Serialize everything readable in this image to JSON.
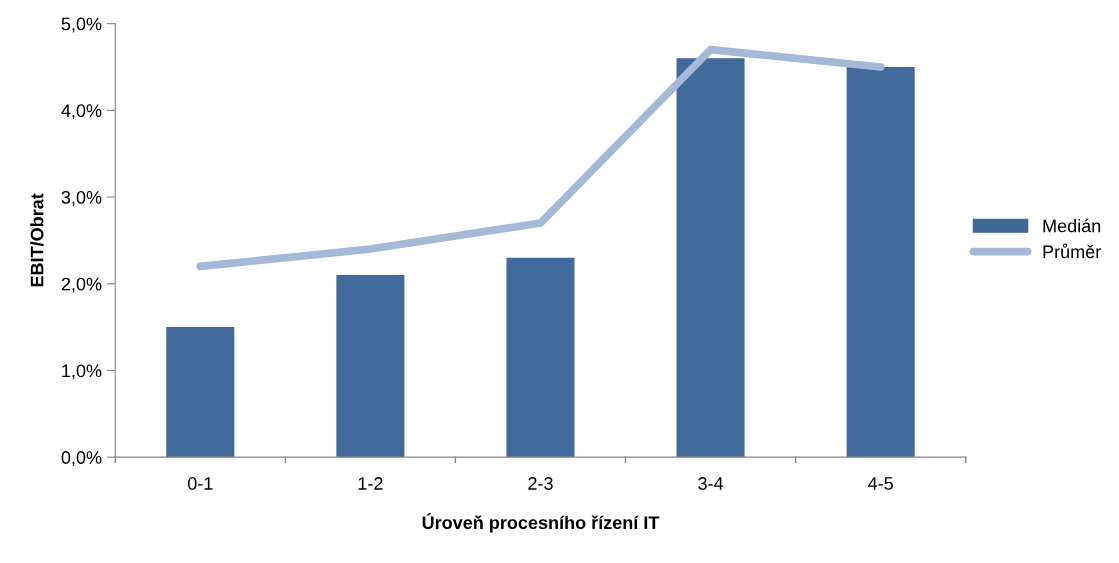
{
  "chart_data": {
    "type": "bar",
    "xlabel": "Úroveň procesního řízení IT",
    "ylabel": "EBIT/Obrat",
    "categories": [
      "0-1",
      "1-2",
      "2-3",
      "3-4",
      "4-5"
    ],
    "series": [
      {
        "name": "Medián",
        "color": "#41699a",
        "values": [
          1.5,
          2.1,
          2.3,
          4.6,
          4.5
        ]
      },
      {
        "name": "Průměr",
        "type": "line",
        "color": "#a4b8d8",
        "values": [
          2.2,
          2.4,
          2.7,
          4.7,
          4.5
        ]
      }
    ],
    "ylim": [
      0,
      5
    ],
    "yticks": [
      {
        "value": 0,
        "label": "0,0%"
      },
      {
        "value": 1,
        "label": "1,0%"
      },
      {
        "value": 2,
        "label": "2,0%"
      },
      {
        "value": 3,
        "label": "3,0%"
      },
      {
        "value": 4,
        "label": "4,0%"
      },
      {
        "value": 5,
        "label": "5,0%"
      }
    ],
    "grid": false,
    "legend": "right",
    "marker": "none",
    "line_style": "solid"
  }
}
